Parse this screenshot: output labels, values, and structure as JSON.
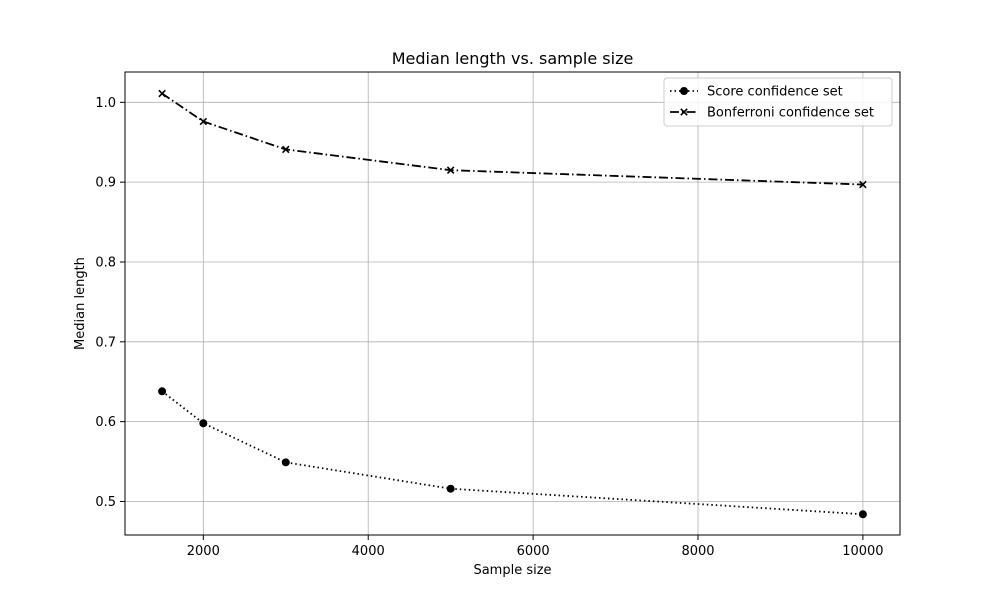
{
  "chart_data": {
    "type": "line",
    "title": "Median length vs. sample size",
    "xlabel": "Sample size",
    "ylabel": "Median length",
    "xlim": [
      1050,
      10450
    ],
    "ylim": [
      0.458,
      1.038
    ],
    "xticks": [
      2000,
      4000,
      6000,
      8000,
      10000
    ],
    "yticks": [
      0.5,
      0.6,
      0.7,
      0.8,
      0.9,
      1.0
    ],
    "xtick_labels": [
      "2000",
      "4000",
      "6000",
      "8000",
      "10000"
    ],
    "ytick_labels": [
      "0.5",
      "0.6",
      "0.7",
      "0.8",
      "0.9",
      "1.0"
    ],
    "grid": true,
    "legend_position": "top-right",
    "x": [
      1500,
      2000,
      3000,
      5000,
      10000
    ],
    "series": [
      {
        "name": "Score confidence set",
        "values": [
          0.638,
          0.598,
          0.549,
          0.516,
          0.484
        ],
        "color": "#000000",
        "line_style": "dotted",
        "marker": "circle"
      },
      {
        "name": "Bonferroni confidence set",
        "values": [
          1.011,
          0.976,
          0.941,
          0.915,
          0.897
        ],
        "color": "#000000",
        "line_style": "dashdot",
        "marker": "x"
      }
    ]
  }
}
